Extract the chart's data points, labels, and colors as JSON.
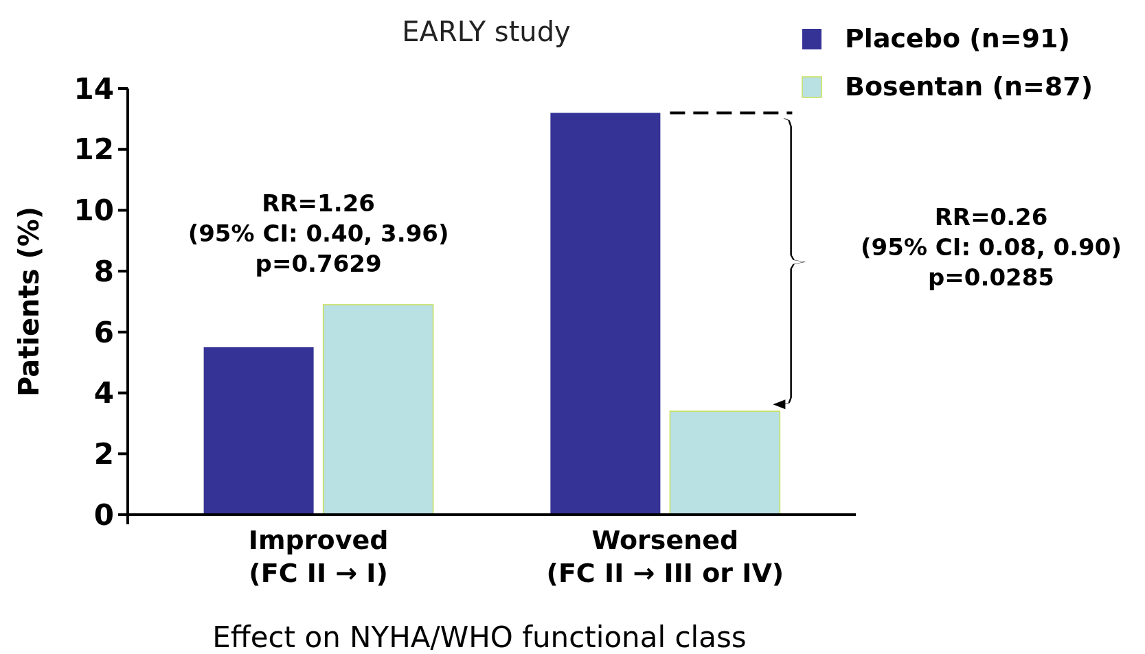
{
  "chart_data": {
    "type": "bar",
    "title": "EARLY study",
    "xlabel": "Effect on NYHA/WHO functional class",
    "ylabel": "Patients (%)",
    "categories": [
      "Improved\n(FC II → I)",
      "Worsened\n(FC II → III or IV)"
    ],
    "series": [
      {
        "name": "Placebo (n=91)",
        "color": "#353396",
        "values": [
          5.5,
          13.2
        ]
      },
      {
        "name": "Bosentan (n=87)",
        "color": "#b9e0e2",
        "values": [
          6.9,
          3.4
        ]
      }
    ],
    "ylim": [
      0,
      14
    ],
    "yticks": [
      0,
      2,
      4,
      6,
      8,
      10,
      12,
      14
    ],
    "legend": "top right",
    "annotations": [
      "RR=1.26\n(95% CI: 0.40, 3.96)\np=0.7629",
      "RR=0.26\n(95% CI: 0.08, 0.90)\np=0.0285"
    ]
  }
}
